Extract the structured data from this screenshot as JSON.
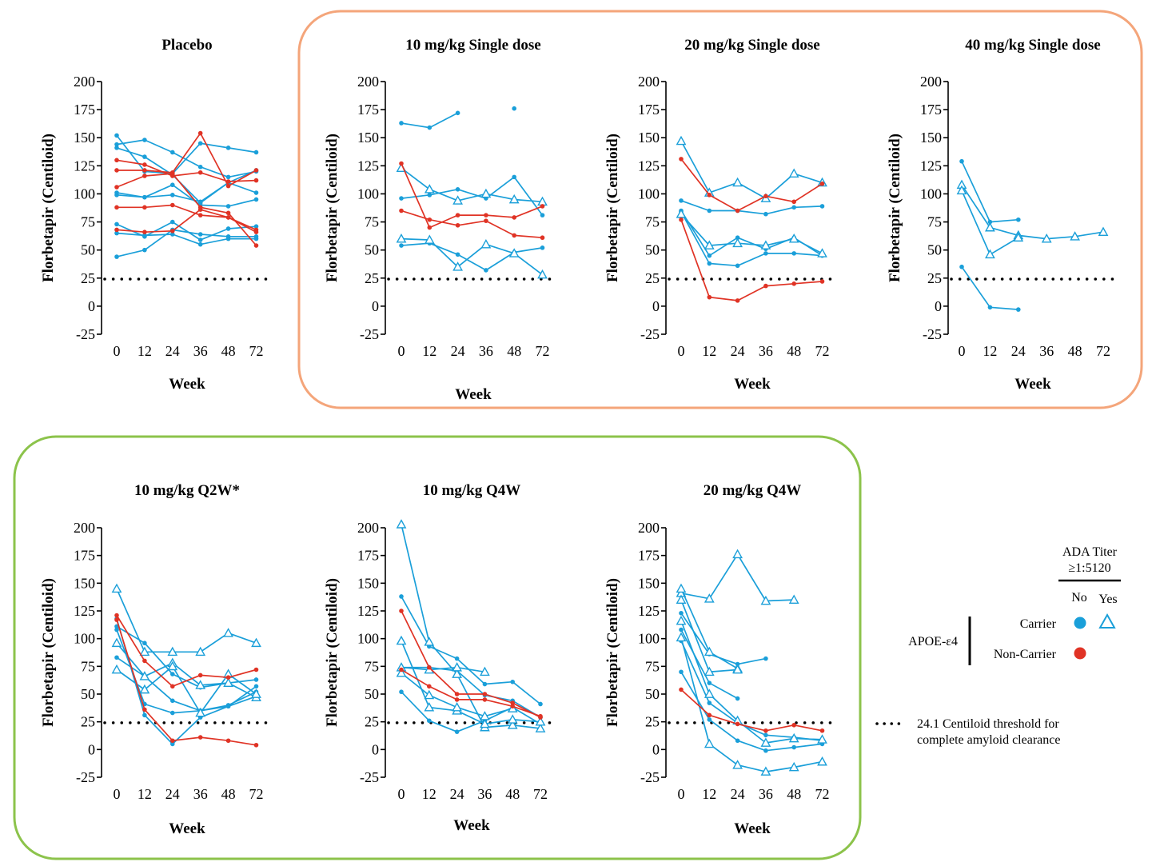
{
  "colors": {
    "carrier": "#1a9fd9",
    "non_carrier": "#e03325",
    "single_dose_box": "#f4a57a",
    "multi_dose_box": "#8cc34b",
    "threshold": "#000000"
  },
  "legend": {
    "ada_title_line1": "ADA Titer",
    "ada_title_line2": "≥1:5120",
    "no_label": "No",
    "yes_label": "Yes",
    "apoe_label": "APOE-ε4",
    "carrier_label": "Carrier",
    "non_carrier_label": "Non-Carrier",
    "threshold_line1": "24.1 Centiloid threshold for",
    "threshold_line2": "complete amyloid clearance"
  },
  "chart_data": [
    {
      "type": "line",
      "title": "Placebo",
      "xlabel": "Week",
      "ylabel": "Florbetapir (Centiloid)",
      "categories": [
        "0",
        "12",
        "24",
        "36",
        "48",
        "72"
      ],
      "ylim": [
        -25,
        200
      ],
      "yticks": [
        "200",
        "175",
        "150",
        "125",
        "100",
        "75",
        "50",
        "25",
        "0",
        "-25"
      ],
      "threshold": 24.1,
      "series": [
        {
          "name": "Carrier",
          "color": "carrier",
          "marker": "circle",
          "values": [
            152,
            120,
            118,
            145,
            141,
            137
          ]
        },
        {
          "name": "Carrier",
          "color": "carrier",
          "marker": "circle",
          "values": [
            144,
            148,
            137,
            124,
            115,
            120
          ]
        },
        {
          "name": "Carrier",
          "color": "carrier",
          "marker": "circle",
          "values": [
            141,
            133,
            117,
            92,
            110,
            101
          ]
        },
        {
          "name": "Carrier",
          "color": "carrier",
          "marker": "circle",
          "values": [
            101,
            97,
            108,
            90,
            89,
            95
          ]
        },
        {
          "name": "Carrier",
          "color": "carrier",
          "marker": "circle",
          "values": [
            99,
            97,
            99,
            93,
            110,
            121
          ]
        },
        {
          "name": "Carrier",
          "color": "carrier",
          "marker": "circle",
          "values": [
            73,
            62,
            75,
            59,
            69,
            71
          ]
        },
        {
          "name": "Carrier",
          "color": "carrier",
          "marker": "circle",
          "values": [
            65,
            63,
            64,
            55,
            60,
            60
          ]
        },
        {
          "name": "Carrier",
          "color": "carrier",
          "marker": "circle",
          "values": [
            44,
            50,
            68,
            64,
            62,
            62
          ]
        },
        {
          "name": "Non-Carrier",
          "color": "non_carrier",
          "marker": "circle",
          "values": [
            130,
            126,
            116,
            119,
            111,
            112
          ]
        },
        {
          "name": "Non-Carrier",
          "color": "non_carrier",
          "marker": "circle",
          "values": [
            121,
            121,
            119,
            154,
            107,
            121
          ]
        },
        {
          "name": "Non-Carrier",
          "color": "non_carrier",
          "marker": "circle",
          "values": [
            106,
            116,
            118,
            88,
            83,
            54
          ]
        },
        {
          "name": "Non-Carrier",
          "color": "non_carrier",
          "marker": "circle",
          "values": [
            88,
            88,
            90,
            81,
            79,
            66
          ]
        },
        {
          "name": "Non-Carrier",
          "color": "non_carrier",
          "marker": "circle",
          "values": [
            68,
            66,
            67,
            86,
            79,
            68
          ]
        }
      ]
    },
    {
      "type": "line",
      "title": "10 mg/kg Single dose",
      "xlabel": "Week",
      "ylabel": "Florbetapir (Centiloid)",
      "categories": [
        "0",
        "12",
        "24",
        "36",
        "48",
        "72"
      ],
      "ylim": [
        -25,
        200
      ],
      "yticks": [
        "200",
        "175",
        "150",
        "125",
        "100",
        "75",
        "50",
        "25",
        "0",
        "-25"
      ],
      "threshold": 24.1,
      "series": [
        {
          "name": "Carrier",
          "color": "carrier",
          "marker": "circle",
          "values": [
            163,
            159,
            172,
            null,
            176,
            null
          ]
        },
        {
          "name": "Carrier",
          "color": "carrier",
          "marker": "circle",
          "values": [
            96,
            99,
            104,
            96,
            115,
            81
          ]
        },
        {
          "name": "Carrier",
          "color": "carrier",
          "marker": "circle",
          "values": [
            54,
            56,
            46,
            32,
            48,
            52
          ]
        },
        {
          "name": "Carrier",
          "color": "carrier",
          "marker": "triangle",
          "values": [
            123,
            104,
            94,
            100,
            95,
            93
          ]
        },
        {
          "name": "Carrier",
          "color": "carrier",
          "marker": "triangle",
          "values": [
            60,
            59,
            35,
            55,
            47,
            28
          ]
        },
        {
          "name": "Non-Carrier",
          "color": "non_carrier",
          "marker": "circle",
          "values": [
            127,
            70,
            81,
            81,
            79,
            89
          ]
        },
        {
          "name": "Non-Carrier",
          "color": "non_carrier",
          "marker": "circle",
          "values": [
            85,
            77,
            72,
            76,
            63,
            61
          ]
        }
      ]
    },
    {
      "type": "line",
      "title": "20 mg/kg Single dose",
      "xlabel": "Week",
      "ylabel": "Florbetapir (Centiloid)",
      "categories": [
        "0",
        "12",
        "24",
        "36",
        "48",
        "72"
      ],
      "ylim": [
        -25,
        200
      ],
      "yticks": [
        "200",
        "175",
        "150",
        "125",
        "100",
        "75",
        "50",
        "25",
        "0",
        "-25"
      ],
      "threshold": 24.1,
      "series": [
        {
          "name": "Carrier",
          "color": "carrier",
          "marker": "circle",
          "values": [
            94,
            85,
            85,
            82,
            88,
            89
          ]
        },
        {
          "name": "Carrier",
          "color": "carrier",
          "marker": "circle",
          "values": [
            85,
            45,
            61,
            51,
            61,
            45
          ]
        },
        {
          "name": "Carrier",
          "color": "carrier",
          "marker": "circle",
          "values": [
            84,
            38,
            36,
            47,
            47,
            45
          ]
        },
        {
          "name": "Carrier",
          "color": "carrier",
          "marker": "triangle",
          "values": [
            147,
            101,
            110,
            96,
            118,
            110
          ]
        },
        {
          "name": "Carrier",
          "color": "carrier",
          "marker": "triangle",
          "values": [
            82,
            54,
            56,
            54,
            60,
            47
          ]
        },
        {
          "name": "Non-Carrier",
          "color": "non_carrier",
          "marker": "circle",
          "values": [
            131,
            99,
            85,
            98,
            93,
            109
          ]
        },
        {
          "name": "Non-Carrier",
          "color": "non_carrier",
          "marker": "circle",
          "values": [
            77,
            8,
            5,
            18,
            20,
            22
          ]
        }
      ]
    },
    {
      "type": "line",
      "title": "40 mg/kg Single dose",
      "xlabel": "Week",
      "ylabel": "Florbetapir (Centiloid)",
      "categories": [
        "0",
        "12",
        "24",
        "36",
        "48",
        "72"
      ],
      "ylim": [
        -25,
        200
      ],
      "yticks": [
        "200",
        "175",
        "150",
        "125",
        "100",
        "75",
        "50",
        "25",
        "0",
        "-25"
      ],
      "threshold": 24.1,
      "series": [
        {
          "name": "Carrier",
          "color": "carrier",
          "marker": "circle",
          "values": [
            129,
            75,
            77,
            null,
            null,
            null
          ]
        },
        {
          "name": "Carrier",
          "color": "carrier",
          "marker": "circle",
          "values": [
            35,
            -1,
            -3,
            null,
            null,
            null
          ]
        },
        {
          "name": "Carrier",
          "color": "carrier",
          "marker": "triangle",
          "values": [
            108,
            70,
            63,
            60,
            62,
            66
          ]
        },
        {
          "name": "Carrier",
          "color": "carrier",
          "marker": "triangle",
          "values": [
            103,
            46,
            61,
            null,
            null,
            null
          ]
        }
      ]
    },
    {
      "type": "line",
      "title": "10 mg/kg Q2W*",
      "xlabel": "Week",
      "ylabel": "Florbetapir (Centiloid)",
      "categories": [
        "0",
        "12",
        "24",
        "36",
        "48",
        "72"
      ],
      "ylim": [
        -25,
        200
      ],
      "yticks": [
        "200",
        "175",
        "150",
        "125",
        "100",
        "75",
        "50",
        "25",
        "0",
        "-25"
      ],
      "threshold": 24.1,
      "series": [
        {
          "name": "Carrier",
          "color": "carrier",
          "marker": "circle",
          "values": [
            111,
            96,
            68,
            56,
            60,
            63
          ]
        },
        {
          "name": "Carrier",
          "color": "carrier",
          "marker": "circle",
          "values": [
            83,
            66,
            44,
            35,
            40,
            52
          ]
        },
        {
          "name": "Carrier",
          "color": "carrier",
          "marker": "circle",
          "values": [
            108,
            41,
            33,
            35,
            39,
            57
          ]
        },
        {
          "name": "Carrier",
          "color": "carrier",
          "marker": "circle",
          "values": [
            118,
            31,
            5,
            29,
            39,
            48
          ]
        },
        {
          "name": "Carrier",
          "color": "carrier",
          "marker": "triangle",
          "values": [
            145,
            88,
            88,
            88,
            105,
            96
          ]
        },
        {
          "name": "Carrier",
          "color": "carrier",
          "marker": "triangle",
          "values": [
            96,
            66,
            78,
            58,
            60,
            47
          ]
        },
        {
          "name": "Carrier",
          "color": "carrier",
          "marker": "triangle",
          "values": [
            72,
            54,
            75,
            33,
            68,
            50
          ]
        },
        {
          "name": "Non-Carrier",
          "color": "non_carrier",
          "marker": "circle",
          "values": [
            121,
            80,
            57,
            67,
            65,
            72
          ]
        },
        {
          "name": "Non-Carrier",
          "color": "non_carrier",
          "marker": "circle",
          "values": [
            117,
            36,
            8,
            11,
            8,
            4
          ]
        }
      ]
    },
    {
      "type": "line",
      "title": "10 mg/kg Q4W",
      "xlabel": "Week",
      "ylabel": "Florbetapir  (Centiloid)",
      "categories": [
        "0",
        "12",
        "24",
        "36",
        "48",
        "72"
      ],
      "ylim": [
        -25,
        200
      ],
      "yticks": [
        "200",
        "175",
        "150",
        "125",
        "100",
        "75",
        "50",
        "25",
        "0",
        "-25"
      ],
      "threshold": 24.1,
      "series": [
        {
          "name": "Carrier",
          "color": "carrier",
          "marker": "circle",
          "values": [
            138,
            93,
            82,
            59,
            61,
            41
          ]
        },
        {
          "name": "Carrier",
          "color": "carrier",
          "marker": "circle",
          "values": [
            74,
            74,
            71,
            49,
            44,
            29
          ]
        },
        {
          "name": "Carrier",
          "color": "carrier",
          "marker": "circle",
          "values": [
            52,
            26,
            16,
            26,
            38,
            23
          ]
        },
        {
          "name": "Carrier",
          "color": "carrier",
          "marker": "triangle",
          "values": [
            203,
            97,
            68,
            20,
            22,
            19
          ]
        },
        {
          "name": "Carrier",
          "color": "carrier",
          "marker": "triangle",
          "values": [
            98,
            38,
            35,
            23,
            27,
            25
          ]
        },
        {
          "name": "Carrier",
          "color": "carrier",
          "marker": "triangle",
          "values": [
            74,
            72,
            74,
            70,
            null,
            null
          ]
        },
        {
          "name": "Carrier",
          "color": "carrier",
          "marker": "triangle",
          "values": [
            69,
            49,
            38,
            30,
            37,
            null
          ]
        },
        {
          "name": "Non-Carrier",
          "color": "non_carrier",
          "marker": "circle",
          "values": [
            125,
            74,
            50,
            50,
            42,
            29
          ]
        },
        {
          "name": "Non-Carrier",
          "color": "non_carrier",
          "marker": "circle",
          "values": [
            72,
            57,
            45,
            45,
            39,
            30
          ]
        }
      ]
    },
    {
      "type": "line",
      "title": "20 mg/kg Q4W",
      "xlabel": "Week",
      "ylabel": "Florbetapir (Centiloid)",
      "categories": [
        "0",
        "12",
        "24",
        "36",
        "48",
        "72"
      ],
      "ylim": [
        -25,
        200
      ],
      "yticks": [
        "200",
        "175",
        "150",
        "125",
        "100",
        "75",
        "50",
        "25",
        "0",
        "-25"
      ],
      "threshold": 24.1,
      "series": [
        {
          "name": "Carrier",
          "color": "carrier",
          "marker": "circle",
          "values": [
            123,
            86,
            77,
            82,
            null,
            null
          ]
        },
        {
          "name": "Carrier",
          "color": "carrier",
          "marker": "circle",
          "values": [
            108,
            60,
            46,
            null,
            null,
            null
          ]
        },
        {
          "name": "Carrier",
          "color": "carrier",
          "marker": "circle",
          "values": [
            98,
            42,
            24,
            13,
            11,
            8
          ]
        },
        {
          "name": "Carrier",
          "color": "carrier",
          "marker": "circle",
          "values": [
            70,
            27,
            8,
            -1,
            2,
            5
          ]
        },
        {
          "name": "Carrier",
          "color": "carrier",
          "marker": "triangle",
          "values": [
            141,
            136,
            176,
            134,
            135,
            null
          ]
        },
        {
          "name": "Carrier",
          "color": "carrier",
          "marker": "triangle",
          "values": [
            145,
            88,
            73,
            null,
            null,
            null
          ]
        },
        {
          "name": "Carrier",
          "color": "carrier",
          "marker": "triangle",
          "values": [
            135,
            70,
            72,
            null,
            null,
            null
          ]
        },
        {
          "name": "Carrier",
          "color": "carrier",
          "marker": "triangle",
          "values": [
            116,
            50,
            26,
            6,
            10,
            9
          ]
        },
        {
          "name": "Carrier",
          "color": "carrier",
          "marker": "triangle",
          "values": [
            101,
            5,
            -14,
            -20,
            -16,
            -11
          ]
        },
        {
          "name": "Non-Carrier",
          "color": "non_carrier",
          "marker": "circle",
          "values": [
            54,
            31,
            23,
            17,
            22,
            17
          ]
        }
      ]
    }
  ]
}
